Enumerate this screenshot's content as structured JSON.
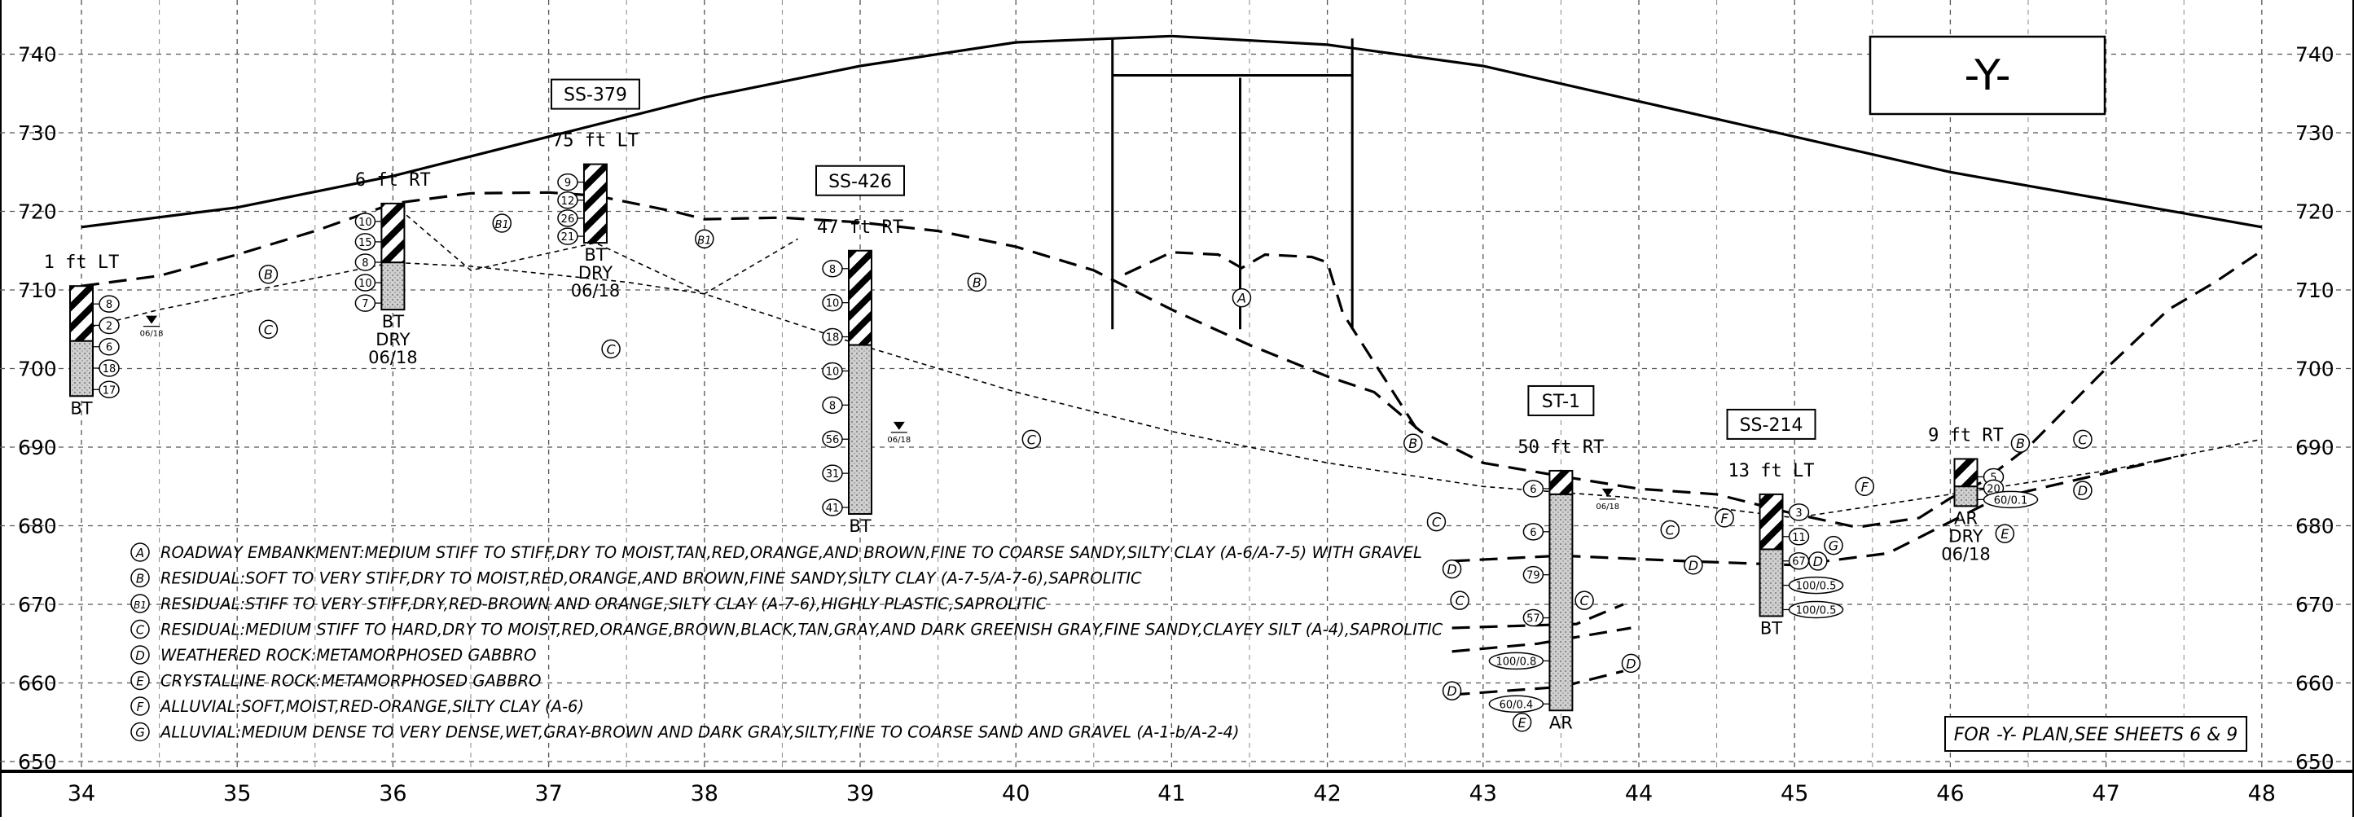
{
  "drawing": {
    "title_box": "-Y-",
    "note": "FOR -Y- PLAN,SEE SHEETS 6 & 9"
  },
  "axes": {
    "elevations": [
      650,
      660,
      670,
      680,
      690,
      700,
      710,
      720,
      730,
      740
    ],
    "stations": [
      34,
      35,
      36,
      37,
      38,
      39,
      40,
      41,
      42,
      43,
      44,
      45,
      46,
      47,
      48
    ],
    "elev_range": [
      650,
      745
    ],
    "station_range": [
      34,
      48
    ]
  },
  "borings": [
    {
      "id": "b1",
      "tag": "",
      "offset": "1 ft LT",
      "station": 34.0,
      "top": 710.5,
      "bottom": 696.5,
      "fill_to": 703.5,
      "end": "BT",
      "water": "",
      "blows": [
        "8",
        "2",
        "6",
        "18",
        "17"
      ]
    },
    {
      "id": "b2",
      "tag": "",
      "offset": "6 ft RT",
      "station": 36.0,
      "top": 721.0,
      "bottom": 707.5,
      "fill_to": 713.5,
      "end": "BT",
      "water": "DRY",
      "date": "06/18",
      "blows": [
        "10",
        "15",
        "8",
        "10",
        "7"
      ]
    },
    {
      "id": "b3",
      "tag": "SS-379",
      "offset": "75 ft LT",
      "station": 37.3,
      "top": 726.0,
      "bottom": 716.0,
      "fill_to": 716.0,
      "end": "BT",
      "water": "DRY",
      "date": "06/18",
      "blows": [
        "9",
        "12",
        "26",
        "21"
      ]
    },
    {
      "id": "b4",
      "tag": "SS-426",
      "offset": "47 ft RT",
      "station": 39.0,
      "top": 715.0,
      "bottom": 681.5,
      "fill_to": 703.0,
      "end": "BT",
      "water": "",
      "blows": [
        "8",
        "10",
        "18",
        "10",
        "8",
        "56",
        "31",
        "41"
      ]
    },
    {
      "id": "b5",
      "tag": "ST-1",
      "offset": "50 ft RT",
      "station": 43.5,
      "top": 687.0,
      "bottom": 656.5,
      "fill_to": 684.0,
      "end": "AR",
      "water": "",
      "blows": [
        "6",
        "6",
        "79",
        "57",
        "100/0.8",
        "60/0.4"
      ]
    },
    {
      "id": "b6",
      "tag": "SS-214",
      "offset": "13 ft LT",
      "station": 44.85,
      "top": 684.0,
      "bottom": 668.5,
      "fill_to": 677.0,
      "end": "BT",
      "water": "",
      "blows": [
        "3",
        "11",
        "67",
        "100/0.5",
        "100/0.5"
      ]
    },
    {
      "id": "b7",
      "tag": "",
      "offset": "9 ft RT",
      "station": 46.1,
      "top": 688.5,
      "bottom": 682.5,
      "fill_to": 685.0,
      "end": "AR",
      "water": "DRY",
      "date": "06/18",
      "blows": [
        "5",
        "20",
        "60/0.1"
      ]
    }
  ],
  "water_date": "06/18",
  "zone_labels": [
    {
      "letter": "A",
      "station": 41.45,
      "elev": 709.0
    },
    {
      "letter": "B",
      "station": 35.2,
      "elev": 712.0
    },
    {
      "letter": "B1",
      "station": 36.7,
      "elev": 718.5
    },
    {
      "letter": "B1",
      "station": 38.0,
      "elev": 716.5
    },
    {
      "letter": "B",
      "station": 39.75,
      "elev": 711.0
    },
    {
      "letter": "B",
      "station": 42.55,
      "elev": 690.5
    },
    {
      "letter": "B",
      "station": 46.45,
      "elev": 690.5
    },
    {
      "letter": "C",
      "station": 35.2,
      "elev": 705.0
    },
    {
      "letter": "C",
      "station": 37.4,
      "elev": 702.5
    },
    {
      "letter": "C",
      "station": 40.1,
      "elev": 691.0
    },
    {
      "letter": "C",
      "station": 42.7,
      "elev": 680.5
    },
    {
      "letter": "C",
      "station": 42.85,
      "elev": 670.5
    },
    {
      "letter": "C",
      "station": 43.65,
      "elev": 670.5
    },
    {
      "letter": "C",
      "station": 44.2,
      "elev": 679.5
    },
    {
      "letter": "C",
      "station": 46.85,
      "elev": 691.0
    },
    {
      "letter": "D",
      "station": 42.8,
      "elev": 674.5
    },
    {
      "letter": "D",
      "station": 42.8,
      "elev": 659.0
    },
    {
      "letter": "D",
      "station": 44.35,
      "elev": 675.0
    },
    {
      "letter": "D",
      "station": 43.95,
      "elev": 662.5
    },
    {
      "letter": "D",
      "station": 45.15,
      "elev": 675.5
    },
    {
      "letter": "D",
      "station": 46.85,
      "elev": 684.5
    },
    {
      "letter": "E",
      "station": 43.25,
      "elev": 655.0
    },
    {
      "letter": "E",
      "station": 46.35,
      "elev": 679.0
    },
    {
      "letter": "F",
      "station": 44.55,
      "elev": 681.0
    },
    {
      "letter": "F",
      "station": 45.45,
      "elev": 685.0
    },
    {
      "letter": "G",
      "station": 45.25,
      "elev": 677.5
    }
  ],
  "legend": [
    {
      "letter": "A",
      "text": "ROADWAY EMBANKMENT:MEDIUM STIFF TO STIFF,DRY TO MOIST,TAN,RED,ORANGE,AND BROWN,FINE TO COARSE SANDY,SILTY CLAY (A-6/A-7-5) WITH GRAVEL"
    },
    {
      "letter": "B",
      "text": "RESIDUAL:SOFT TO VERY STIFF,DRY TO MOIST,RED,ORANGE,AND BROWN,FINE SANDY,SILTY CLAY (A-7-5/A-7-6),SAPROLITIC"
    },
    {
      "letter": "B1",
      "text": "RESIDUAL:STIFF TO VERY STIFF,DRY,RED-BROWN AND ORANGE,SILTY CLAY (A-7-6),HIGHLY PLASTIC,SAPROLITIC"
    },
    {
      "letter": "C",
      "text": "RESIDUAL:MEDIUM STIFF TO HARD,DRY TO MOIST,RED,ORANGE,BROWN,BLACK,TAN,GRAY,AND DARK GREENISH GRAY,FINE SANDY,CLAYEY SILT (A-4),SAPROLITIC"
    },
    {
      "letter": "D",
      "text": "WEATHERED ROCK:METAMORPHOSED GABBRO"
    },
    {
      "letter": "E",
      "text": "CRYSTALLINE ROCK:METAMORPHOSED GABBRO"
    },
    {
      "letter": "F",
      "text": "ALLUVIAL:SOFT,MOIST,RED-ORANGE,SILTY CLAY (A-6)"
    },
    {
      "letter": "G",
      "text": "ALLUVIAL:MEDIUM DENSE TO VERY DENSE,WET,GRAY-BROWN AND DARK GRAY,SILTY,FINE TO COARSE SAND AND GRAVEL (A-1-b/A-2-4)"
    }
  ],
  "profiles": {
    "roadway": [
      [
        34,
        718
      ],
      [
        35,
        720.5
      ],
      [
        36,
        724.5
      ],
      [
        37,
        729.5
      ],
      [
        38,
        734.5
      ],
      [
        39,
        738.5
      ],
      [
        40,
        741.5
      ],
      [
        41,
        742.3
      ],
      [
        42,
        741.2
      ],
      [
        43,
        738.5
      ],
      [
        44,
        734
      ],
      [
        45,
        729.5
      ],
      [
        46,
        725
      ],
      [
        47,
        721.5
      ],
      [
        48,
        718
      ]
    ],
    "ground": [
      [
        34,
        710.5
      ],
      [
        34.5,
        711.8
      ],
      [
        35,
        714.5
      ],
      [
        35.5,
        717.5
      ],
      [
        36,
        721
      ],
      [
        36.5,
        722.3
      ],
      [
        37,
        722.4
      ],
      [
        37.3,
        722
      ],
      [
        37.8,
        720
      ],
      [
        38,
        719
      ],
      [
        38.5,
        719.2
      ],
      [
        39,
        718.6
      ],
      [
        39.5,
        717.5
      ],
      [
        40,
        715.5
      ],
      [
        40.5,
        712.5
      ],
      [
        41,
        707.5
      ],
      [
        41.5,
        703
      ],
      [
        42,
        699
      ],
      [
        42.3,
        697
      ],
      [
        42.6,
        692
      ],
      [
        43,
        688
      ],
      [
        43.5,
        686.3
      ],
      [
        44,
        684.7
      ],
      [
        44.5,
        684
      ],
      [
        45,
        681.5
      ],
      [
        45.4,
        679.8
      ],
      [
        45.8,
        681
      ],
      [
        46,
        683.5
      ],
      [
        46.2,
        685.5
      ],
      [
        46.5,
        690
      ],
      [
        46.8,
        696
      ],
      [
        47,
        700
      ],
      [
        47.4,
        707.5
      ],
      [
        47.7,
        711
      ],
      [
        48,
        715
      ]
    ],
    "fill_top": [
      [
        40.7,
        712
      ],
      [
        41,
        714.8
      ],
      [
        41.3,
        714.5
      ],
      [
        41.45,
        712.8
      ],
      [
        41.6,
        714.5
      ],
      [
        41.9,
        714.2
      ],
      [
        42,
        713.5
      ],
      [
        42.1,
        707
      ],
      [
        42.6,
        691.5
      ]
    ],
    "b_c_boundary": [
      [
        34,
        705
      ],
      [
        34.5,
        707.5
      ],
      [
        35,
        709.5
      ],
      [
        36,
        713.5
      ],
      [
        36.5,
        713
      ],
      [
        37,
        712
      ],
      [
        37.5,
        711
      ],
      [
        38,
        709.5
      ],
      [
        39,
        703
      ],
      [
        40,
        697
      ],
      [
        41,
        692
      ],
      [
        42,
        688
      ],
      [
        43,
        685
      ],
      [
        44,
        683.5
      ],
      [
        45,
        681
      ],
      [
        46,
        684
      ],
      [
        47,
        687
      ],
      [
        48,
        691
      ]
    ],
    "b1_lower": [
      [
        36,
        721
      ],
      [
        36.5,
        712.5
      ],
      [
        37.3,
        716
      ],
      [
        38,
        709.5
      ],
      [
        38.6,
        716.5
      ]
    ],
    "d_top": [
      [
        42.8,
        675.5
      ],
      [
        43.5,
        676.2
      ],
      [
        44.3,
        675.5
      ],
      [
        45,
        675
      ],
      [
        45.6,
        676.5
      ],
      [
        46.3,
        683.5
      ],
      [
        47.5,
        689
      ]
    ],
    "d_lens_a": [
      [
        42.8,
        664
      ],
      [
        43.35,
        665
      ],
      [
        43.95,
        667
      ]
    ],
    "d_lens_b": [
      [
        42.8,
        667
      ],
      [
        43.6,
        667.5
      ],
      [
        43.9,
        670
      ]
    ],
    "e_top": [
      [
        42.8,
        658.5
      ],
      [
        43.5,
        659.5
      ],
      [
        43.9,
        661.5
      ]
    ]
  }
}
